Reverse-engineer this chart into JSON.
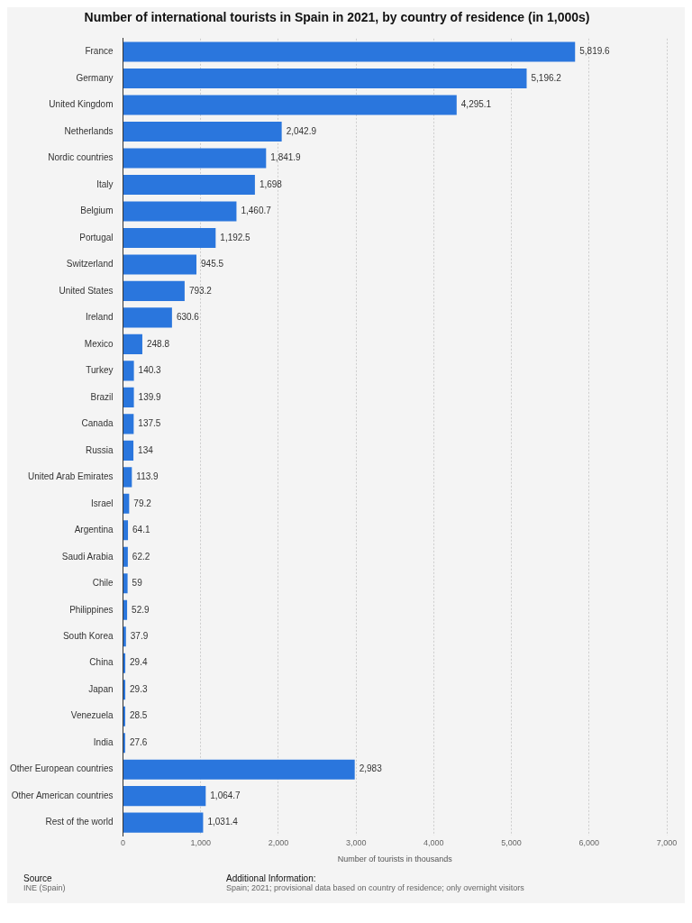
{
  "chart_data": {
    "type": "bar",
    "orientation": "horizontal",
    "title": "Number of international tourists in Spain in 2021, by country of residence (in 1,000s)",
    "xlabel": "Number of tourists in thousands",
    "categories": [
      "France",
      "Germany",
      "United Kingdom",
      "Netherlands",
      "Nordic countries",
      "Italy",
      "Belgium",
      "Portugal",
      "Switzerland",
      "United States",
      "Ireland",
      "Mexico",
      "Turkey",
      "Brazil",
      "Canada",
      "Russia",
      "United Arab Emirates",
      "Israel",
      "Argentina",
      "Saudi Arabia",
      "Chile",
      "Philippines",
      "South Korea",
      "China",
      "Japan",
      "Venezuela",
      "India",
      "Other European countries",
      "Other American countries",
      "Rest of the world"
    ],
    "values": [
      5819.6,
      5196.2,
      4295.1,
      2042.9,
      1841.9,
      1698,
      1460.7,
      1192.5,
      945.5,
      793.2,
      630.6,
      248.8,
      140.3,
      139.9,
      137.5,
      134,
      113.9,
      79.2,
      64.1,
      62.2,
      59,
      52.9,
      37.9,
      29.4,
      29.3,
      28.5,
      27.6,
      2983,
      1064.7,
      1031.4
    ],
    "color": "#2a76dd",
    "xlim": [
      0,
      7000
    ],
    "xticks": [
      {
        "value": 0,
        "label": "0"
      },
      {
        "value": 1000,
        "label": "1,000"
      },
      {
        "value": 2000,
        "label": "2,000"
      },
      {
        "value": 3000,
        "label": "3,000"
      },
      {
        "value": 4000,
        "label": "4,000"
      },
      {
        "value": 5000,
        "label": "5,000"
      },
      {
        "value": 6000,
        "label": "6,000"
      },
      {
        "value": 7000,
        "label": "7,000"
      }
    ],
    "value_labels": [
      "5,819.6",
      "5,196.2",
      "4,295.1",
      "2,042.9",
      "1,841.9",
      "1,698",
      "1,460.7",
      "1,192.5",
      "945.5",
      "793.2",
      "630.6",
      "248.8",
      "140.3",
      "139.9",
      "137.5",
      "134",
      "113.9",
      "79.2",
      "64.1",
      "62.2",
      "59",
      "52.9",
      "37.9",
      "29.4",
      "29.3",
      "28.5",
      "27.6",
      "2,983",
      "1,064.7",
      "1,031.4"
    ],
    "grid": "x",
    "legend": false,
    "annotations": [
      "Source",
      "INE (Spain)",
      "Additional Information:",
      "Spain; 2021; provisional data based on country of residence; only overnight visitors"
    ]
  }
}
